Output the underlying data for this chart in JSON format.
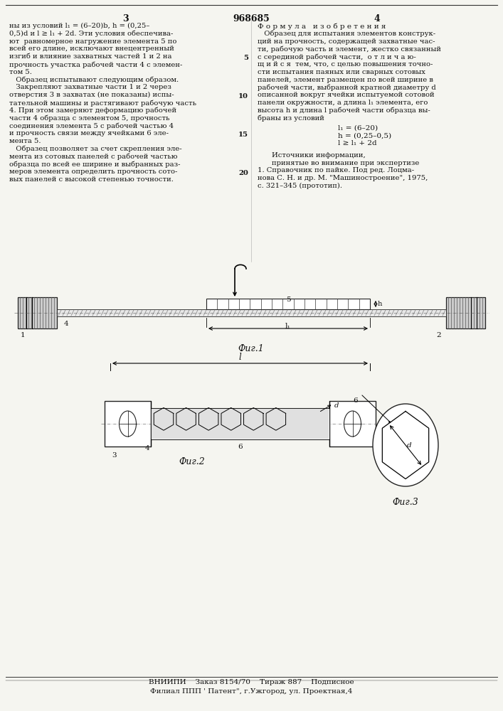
{
  "bg_color": "#f5f5f0",
  "page_number_left": "3",
  "page_number_center": "968685",
  "page_number_right": "4",
  "left_col_lines": [
    "ны из условий l₁ = (6–20)b, h = (0,25–",
    "0,5)d и l ≥ l₁ + 2d. Эти условия обеспечива-",
    "ют  равномерное нагружение элемента 5 по",
    "всей его длине, исключают внецентренный",
    "изгиб и влияние захватных частей 1 и 2 на",
    "прочность участка рабочей части 4 с элемен-",
    "том 5.",
    "   Образец испытывают следующим образом.",
    "   Закрепляют захватные части 1 и 2 через",
    "отверстия 3 в захватах (не показаны) испы-",
    "тательной машины и растягивают рабочую часть",
    "4. При этом замеряют деформацию рабочей",
    "части 4 образца с элементом 5, прочность",
    "соединения элемента 5 с рабочей частью 4",
    "и прочность связи между ячейками 6 эле-",
    "мента 5.",
    "   Образец позволяет за счет скрепления эле-",
    "мента из сотовых панелей с рабочей частью",
    "образца по всей ее ширине и выбранных раз-",
    "меров элемента определить прочность сото-",
    "вых панелей с высокой степенью точности."
  ],
  "right_col_lines": [
    "Ф о р м у л а   и з о б р е т е н и я",
    "   Образец для испытания элементов конструк-",
    "ций на прочность, содержащей захватные час-",
    "ти, рабочую часть и элемент, жестко связанный",
    "с серединой рабочей части,  о т л и ч а ю-",
    "щ и й с я  тем, что, с целью повышения точно-",
    "сти испытания паяных или сварных сотовых",
    "панелей, элемент размещен по всей ширине в",
    "рабочей части, выбранной кратной диаметру d",
    "описанной вокруг ячейки испытуемой сотовой",
    "панели окружности, а длина l₁ элемента, его",
    "высота h и длина l рабочей части образца вы-",
    "браны из условий"
  ],
  "line5": "5",
  "line10": "10",
  "line15": "15",
  "line20": "20",
  "formula_l1": "l₁ = (6–20)",
  "formula_h": "h = (0,25–0,5)",
  "formula_l": "l ≥ l₁ + 2d",
  "sources_header1": "Источники информации,",
  "sources_header2": "принятые во внимание при экспертизе",
  "sources_ref1a": "1. Справочник по пайке. Под ред. Лоцма-",
  "sources_ref1b": "нова С. Н. и др. М. \"Машиностроение\", 1975,",
  "sources_ref1c": "с. 321–345 (прототип).",
  "fig1_label": "Фиг.1",
  "fig2_label": "Фиг.2",
  "fig3_label": "Фиг.3",
  "bottom1": "ВНИИПИ    Заказ 8154/70    Тираж 887    Подписное",
  "bottom2": "Филиал ППП ' Патент\", г.Ужгород, ул. Проектная,4"
}
